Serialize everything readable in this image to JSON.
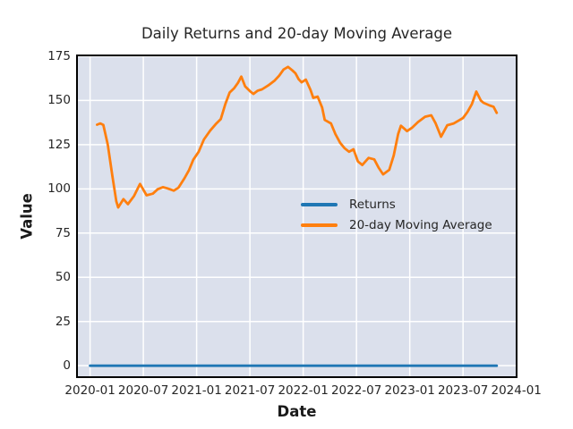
{
  "colors": {
    "figure_bg": "#ffffff",
    "plot_bg": "#dbe0ec",
    "grid": "#ffffff",
    "spine": "#000000",
    "text": "#262626",
    "returns_line": "#1f77b4",
    "ma_line": "#ff7f0e"
  },
  "chart_data": {
    "type": "line",
    "title": "Daily Returns and 20-day Moving Average",
    "xlabel": "Date",
    "ylabel": "Value",
    "grid": true,
    "legend_position": "inside-center-right",
    "x_tick_labels": [
      "2020-01",
      "2020-07",
      "2021-01",
      "2021-07",
      "2022-01",
      "2022-07",
      "2023-01",
      "2023-07",
      "2024-01"
    ],
    "y_tick_labels": [
      "0",
      "25",
      "50",
      "75",
      "100",
      "125",
      "150",
      "175"
    ],
    "ylim": [
      -7,
      176
    ],
    "xlim": [
      "2019-11-14",
      "2024-01-05"
    ],
    "series": [
      {
        "name": "Returns",
        "color": "#1f77b4",
        "description": "daily returns, visually flat near zero for the whole range",
        "points": [
          [
            "2020-01-01",
            0
          ],
          [
            "2023-10-25",
            0
          ]
        ]
      },
      {
        "name": "20-day Moving Average",
        "color": "#ff7f0e",
        "points": [
          [
            "2020-01-25",
            136.3
          ],
          [
            "2020-02-06",
            137.0
          ],
          [
            "2020-02-16",
            136.2
          ],
          [
            "2020-03-01",
            125.0
          ],
          [
            "2020-03-16",
            108.0
          ],
          [
            "2020-03-30",
            93.0
          ],
          [
            "2020-04-06",
            89.5
          ],
          [
            "2020-04-24",
            94.2
          ],
          [
            "2020-05-09",
            91.4
          ],
          [
            "2020-05-30",
            96.0
          ],
          [
            "2020-06-20",
            102.8
          ],
          [
            "2020-07-12",
            96.4
          ],
          [
            "2020-08-03",
            97.3
          ],
          [
            "2020-08-20",
            99.8
          ],
          [
            "2020-09-07",
            101.0
          ],
          [
            "2020-09-22",
            100.3
          ],
          [
            "2020-10-14",
            99.0
          ],
          [
            "2020-10-30",
            100.7
          ],
          [
            "2020-11-20",
            106.0
          ],
          [
            "2020-12-05",
            110.5
          ],
          [
            "2020-12-20",
            116.5
          ],
          [
            "2021-01-08",
            121.0
          ],
          [
            "2021-01-26",
            128.0
          ],
          [
            "2021-02-17",
            133.0
          ],
          [
            "2021-03-08",
            137.0
          ],
          [
            "2021-03-23",
            139.5
          ],
          [
            "2021-04-08",
            148.0
          ],
          [
            "2021-04-23",
            154.5
          ],
          [
            "2021-05-08",
            157.0
          ],
          [
            "2021-05-21",
            160.0
          ],
          [
            "2021-06-02",
            163.5
          ],
          [
            "2021-06-15",
            158.0
          ],
          [
            "2021-07-01",
            155.3
          ],
          [
            "2021-07-13",
            153.7
          ],
          [
            "2021-07-27",
            155.5
          ],
          [
            "2021-08-12",
            156.3
          ],
          [
            "2021-09-03",
            158.5
          ],
          [
            "2021-09-25",
            161.3
          ],
          [
            "2021-10-10",
            164.0
          ],
          [
            "2021-10-25",
            167.5
          ],
          [
            "2021-11-10",
            169.0
          ],
          [
            "2021-11-25",
            167.0
          ],
          [
            "2021-12-05",
            165.4
          ],
          [
            "2021-12-16",
            162.0
          ],
          [
            "2021-12-26",
            160.3
          ],
          [
            "2022-01-10",
            161.8
          ],
          [
            "2022-01-26",
            156.0
          ],
          [
            "2022-02-05",
            151.5
          ],
          [
            "2022-02-20",
            152.2
          ],
          [
            "2022-03-05",
            146.0
          ],
          [
            "2022-03-14",
            139.0
          ],
          [
            "2022-04-05",
            137.0
          ],
          [
            "2022-04-20",
            131.0
          ],
          [
            "2022-05-06",
            126.0
          ],
          [
            "2022-05-21",
            123.0
          ],
          [
            "2022-06-06",
            121.0
          ],
          [
            "2022-06-21",
            122.4
          ],
          [
            "2022-07-06",
            115.5
          ],
          [
            "2022-07-21",
            113.5
          ],
          [
            "2022-08-12",
            117.5
          ],
          [
            "2022-09-01",
            116.7
          ],
          [
            "2022-09-16",
            112.0
          ],
          [
            "2022-10-01",
            108.2
          ],
          [
            "2022-10-22",
            110.8
          ],
          [
            "2022-11-07",
            119.0
          ],
          [
            "2022-11-22",
            131.0
          ],
          [
            "2022-12-01",
            135.7
          ],
          [
            "2022-12-13",
            134.0
          ],
          [
            "2022-12-22",
            132.7
          ],
          [
            "2023-01-08",
            134.5
          ],
          [
            "2023-01-29",
            137.8
          ],
          [
            "2023-02-23",
            140.8
          ],
          [
            "2023-03-14",
            141.6
          ],
          [
            "2023-03-29",
            137.0
          ],
          [
            "2023-04-17",
            129.5
          ],
          [
            "2023-05-08",
            136.0
          ],
          [
            "2023-05-30",
            137.0
          ],
          [
            "2023-06-15",
            138.5
          ],
          [
            "2023-07-01",
            140.1
          ],
          [
            "2023-07-16",
            143.5
          ],
          [
            "2023-08-01",
            148.0
          ],
          [
            "2023-08-16",
            155.0
          ],
          [
            "2023-09-01",
            150.0
          ],
          [
            "2023-09-10",
            148.7
          ],
          [
            "2023-10-01",
            147.2
          ],
          [
            "2023-10-14",
            146.5
          ],
          [
            "2023-10-25",
            143.0
          ]
        ]
      }
    ]
  }
}
